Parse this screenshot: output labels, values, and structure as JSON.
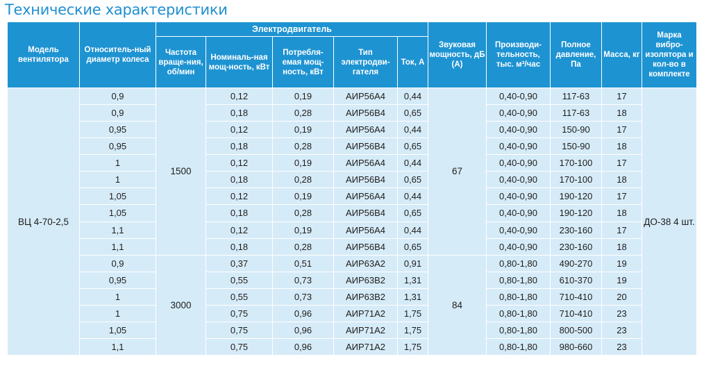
{
  "title": "Технические характеристики",
  "headers": {
    "model": "Модель вентилятора",
    "diameter": "Относитель-ный диаметр колеса",
    "motor_group": "Электродвигатель",
    "rpm": "Частота враще-ния, об/мин",
    "nominal_power": "Номиналь-ная мощ-ность, кВт",
    "consumed_power": "Потребля-емая мощ-ность, кВт",
    "motor_type": "Тип электродви-гателя",
    "current": "Ток, А",
    "sound": "Звуковая мощность, дБ (А)",
    "productivity": "Производи-тельность, тыс. м³/час",
    "pressure": "Полное давление, Па",
    "mass": "Масса, кг",
    "isolator": "Марка вибро-изолятора и кол-во в комплекте"
  },
  "model": "ВЦ 4-70-2,5",
  "isolator": "ДО-38 4 шт.",
  "groups": [
    {
      "rpm": "1500",
      "sound": "67"
    },
    {
      "rpm": "3000",
      "sound": "84"
    }
  ],
  "rows": [
    {
      "d": "0,9",
      "pn": "0,12",
      "pc": "0,19",
      "type": "АИР56А4",
      "i": "0,44",
      "q": "0,40-0,90",
      "p": "117-63",
      "m": "17"
    },
    {
      "d": "0,9",
      "pn": "0,18",
      "pc": "0,28",
      "type": "АИР56В4",
      "i": "0,65",
      "q": "0,40-0,90",
      "p": "117-63",
      "m": "18"
    },
    {
      "d": "0,95",
      "pn": "0,12",
      "pc": "0,19",
      "type": "АИР56А4",
      "i": "0,44",
      "q": "0,40-0,90",
      "p": "150-90",
      "m": "17"
    },
    {
      "d": "0,95",
      "pn": "0,18",
      "pc": "0,28",
      "type": "АИР56В4",
      "i": "0,65",
      "q": "0,40-0,90",
      "p": "150-90",
      "m": "18"
    },
    {
      "d": "1",
      "pn": "0,12",
      "pc": "0,19",
      "type": "АИР56А4",
      "i": "0,44",
      "q": "0,40-0,90",
      "p": "170-100",
      "m": "17"
    },
    {
      "d": "1",
      "pn": "0,18",
      "pc": "0,28",
      "type": "АИР56В4",
      "i": "0,65",
      "q": "0,40-0,90",
      "p": "170-100",
      "m": "18"
    },
    {
      "d": "1,05",
      "pn": "0,12",
      "pc": "0,19",
      "type": "АИР56А4",
      "i": "0,44",
      "q": "0,40-0,90",
      "p": "190-120",
      "m": "17"
    },
    {
      "d": "1,05",
      "pn": "0,18",
      "pc": "0,28",
      "type": "АИР56В4",
      "i": "0,65",
      "q": "0,40-0,90",
      "p": "190-120",
      "m": "18"
    },
    {
      "d": "1,1",
      "pn": "0,12",
      "pc": "0,19",
      "type": "АИР56А4",
      "i": "0,44",
      "q": "0,40-0,90",
      "p": "230-160",
      "m": "17"
    },
    {
      "d": "1,1",
      "pn": "0,18",
      "pc": "0,28",
      "type": "АИР56В4",
      "i": "0,65",
      "q": "0,40-0,90",
      "p": "230-160",
      "m": "18"
    },
    {
      "d": "0,9",
      "pn": "0,37",
      "pc": "0,51",
      "type": "АИР63А2",
      "i": "0,91",
      "q": "0,80-1,80",
      "p": "490-270",
      "m": "19"
    },
    {
      "d": "0,95",
      "pn": "0,55",
      "pc": "0,73",
      "type": "АИР63В2",
      "i": "1,31",
      "q": "0,80-1,80",
      "p": "610-370",
      "m": "19"
    },
    {
      "d": "1",
      "pn": "0,55",
      "pc": "0,73",
      "type": "АИР63В2",
      "i": "1,31",
      "q": "0,80-1,80",
      "p": "710-410",
      "m": "20"
    },
    {
      "d": "1",
      "pn": "0,75",
      "pc": "0,96",
      "type": "АИР71А2",
      "i": "1,75",
      "q": "0,80-1,80",
      "p": "710-410",
      "m": "23"
    },
    {
      "d": "1,05",
      "pn": "0,75",
      "pc": "0,96",
      "type": "АИР71А2",
      "i": "1,75",
      "q": "0,80-1,80",
      "p": "800-500",
      "m": "23"
    },
    {
      "d": "1,1",
      "pn": "0,75",
      "pc": "0,96",
      "type": "АИР71А2",
      "i": "1,75",
      "q": "0,80-1,80",
      "p": "980-660",
      "m": "23"
    }
  ]
}
